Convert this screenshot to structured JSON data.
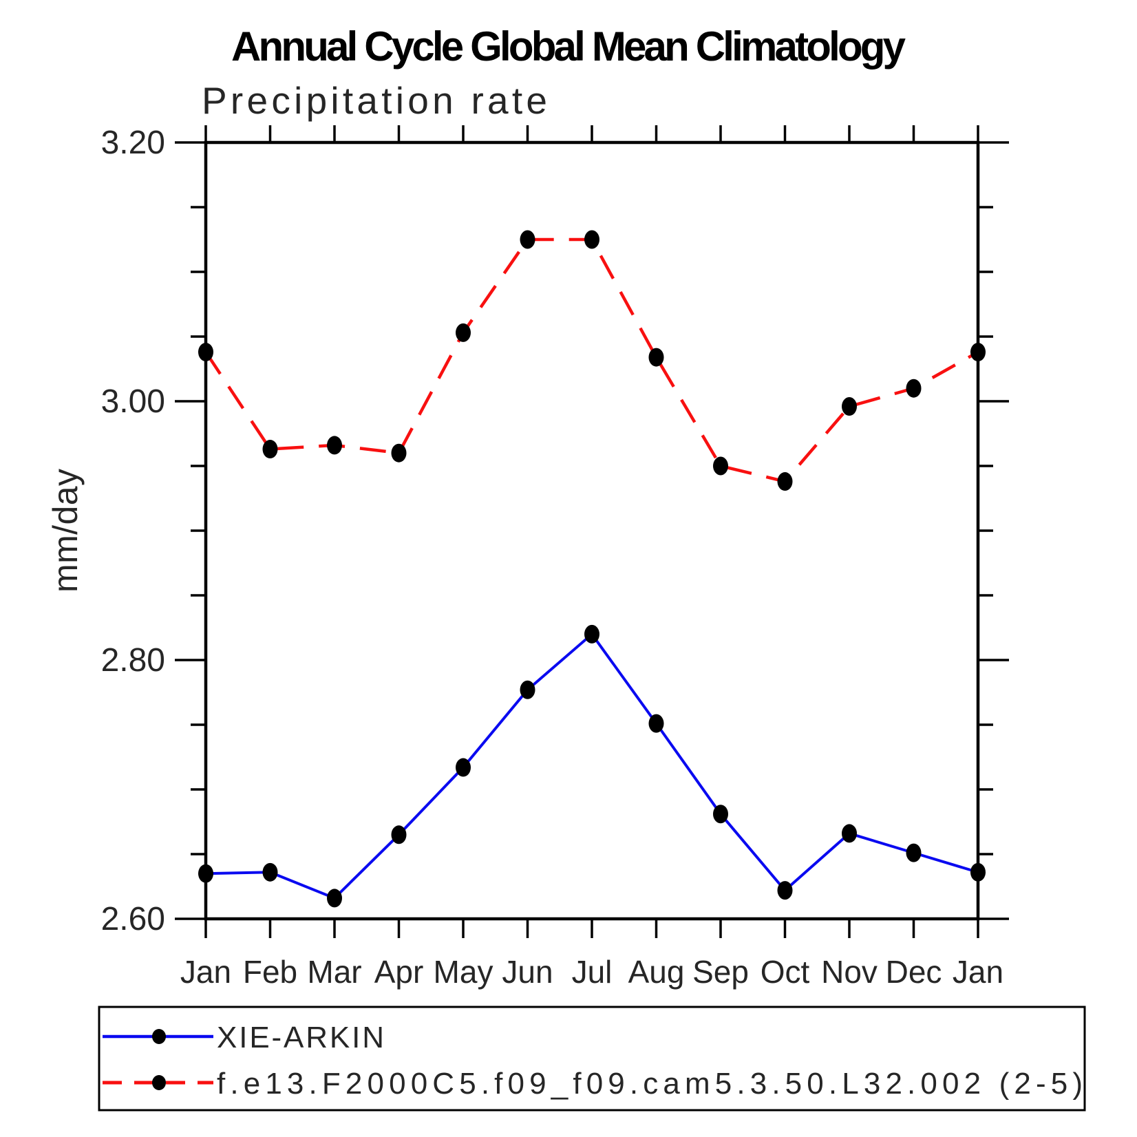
{
  "chart_data": {
    "type": "line",
    "title": "Annual Cycle Global Mean Climatology",
    "subtitle": "Precipitation rate",
    "ylabel": "mm/day",
    "x_categories": [
      "Jan",
      "Feb",
      "Mar",
      "Apr",
      "May",
      "Jun",
      "Jul",
      "Aug",
      "Sep",
      "Oct",
      "Nov",
      "Dec",
      "Jan"
    ],
    "ylim": [
      2.6,
      3.2
    ],
    "ytick_major": [
      {
        "value": 3.2,
        "label": "3.20"
      },
      {
        "value": 3.0,
        "label": "3.00"
      },
      {
        "value": 2.8,
        "label": "2.80"
      },
      {
        "value": 2.6,
        "label": "2.60"
      }
    ],
    "ytick_minor_step": 0.05,
    "grid": false,
    "legend_position": "bottom-box",
    "series": [
      {
        "name": "XIE-ARKIN",
        "color": "#0a0af0",
        "line_style": "solid",
        "marker": "filled-circle",
        "marker_color": "#000000",
        "values": [
          2.635,
          2.636,
          2.616,
          2.665,
          2.717,
          2.777,
          2.82,
          2.751,
          2.681,
          2.622,
          2.666,
          2.651,
          2.636
        ]
      },
      {
        "name": "f.e13.F2000C5.f09_f09.cam5.3.50.L32.002 (2-5)",
        "color": "#f81010",
        "line_style": "dashed",
        "marker": "filled-circle",
        "marker_color": "#000000",
        "values": [
          3.038,
          2.963,
          2.966,
          2.96,
          3.053,
          3.125,
          3.125,
          3.034,
          2.95,
          2.938,
          2.996,
          3.01,
          3.038
        ]
      }
    ]
  }
}
